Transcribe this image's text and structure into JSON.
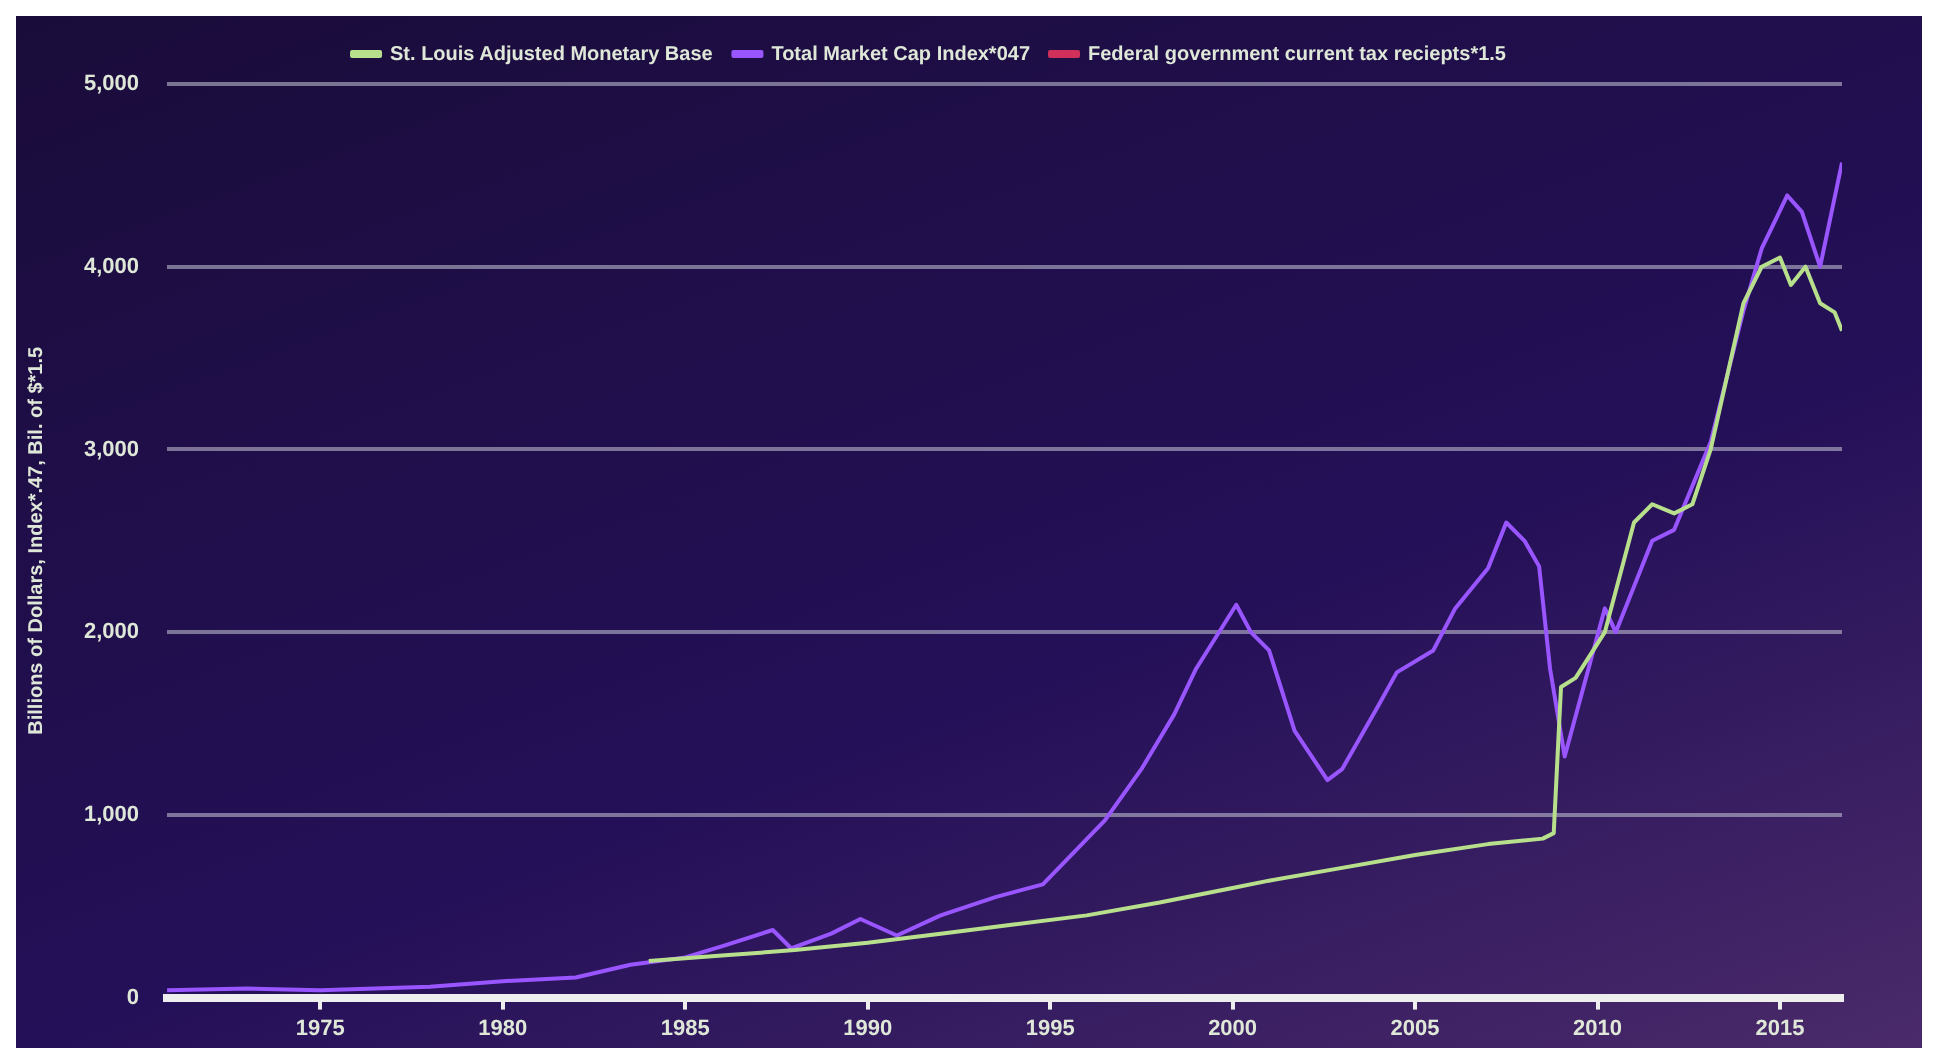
{
  "chart_data": {
    "type": "line",
    "ylabel": "Billions of Dollars, Index*.47, Bil. of $*1.5",
    "xlim": [
      1970.8,
      2016.7
    ],
    "xticks": [
      1975,
      1980,
      1985,
      1990,
      1995,
      2000,
      2005,
      2010,
      2015
    ],
    "ylim": [
      0,
      5000
    ],
    "yticks": [
      {
        "value": 0,
        "label": "0"
      },
      {
        "value": 1000,
        "label": "1,000"
      },
      {
        "value": 2000,
        "label": "2,000"
      },
      {
        "value": 3000,
        "label": "3,000"
      },
      {
        "value": 4000,
        "label": "4,000"
      },
      {
        "value": 5000,
        "label": "5,000"
      }
    ],
    "grid": "y",
    "legend": "top",
    "marker": "none",
    "line_style": "solid",
    "series": [
      {
        "name": "St. Louis Adjusted Monetary Base",
        "color": "#b8e08c",
        "x": [
          1984,
          1986,
          1988,
          1990,
          1992,
          1994,
          1996,
          1998,
          2000,
          2001,
          2003,
          2005,
          2007,
          2008.5,
          2008.8,
          2009.0,
          2009.4,
          2010.2,
          2011,
          2011.5,
          2012.1,
          2012.6,
          2013.1,
          2014,
          2014.5,
          2015,
          2015.3,
          2015.7,
          2016.1,
          2016.5,
          2016.7
        ],
        "values": [
          200,
          230,
          260,
          300,
          350,
          400,
          450,
          520,
          600,
          640,
          710,
          780,
          840,
          870,
          900,
          1700,
          1750,
          2000,
          2600,
          2700,
          2650,
          2700,
          3000,
          3800,
          4000,
          4050,
          3900,
          4000,
          3800,
          3750,
          3650
        ]
      },
      {
        "name": "Total Market Cap Index*047",
        "color": "#9955ff",
        "x": [
          1970.8,
          1973,
          1975,
          1978,
          1980,
          1982,
          1983.5,
          1985,
          1986,
          1987.4,
          1987.9,
          1989,
          1989.8,
          1990.8,
          1992,
          1993.5,
          1994.8,
          1996.5,
          1997.5,
          1998.4,
          1999,
          2000.1,
          2000.5,
          2001,
          2001.7,
          2002.6,
          2003,
          2004,
          2004.5,
          2005.5,
          2006.1,
          2007,
          2007.5,
          2008,
          2008.4,
          2008.7,
          2009.1,
          2010.2,
          2010.5,
          2011.5,
          2012.1,
          2013.1,
          2014,
          2014.5,
          2015.2,
          2015.6,
          2016.1,
          2016.7
        ],
        "values": [
          40,
          50,
          40,
          60,
          90,
          110,
          180,
          220,
          280,
          370,
          270,
          350,
          430,
          340,
          450,
          550,
          620,
          970,
          1250,
          1550,
          1800,
          2150,
          2000,
          1900,
          1460,
          1190,
          1250,
          1600,
          1780,
          1900,
          2130,
          2350,
          2600,
          2500,
          2360,
          1800,
          1320,
          2130,
          2000,
          2500,
          2560,
          3040,
          3760,
          4100,
          4390,
          4300,
          4000,
          4570
        ]
      },
      {
        "name": "Federal government current tax reciepts*1.5",
        "color": "#d0305a"
      }
    ]
  }
}
